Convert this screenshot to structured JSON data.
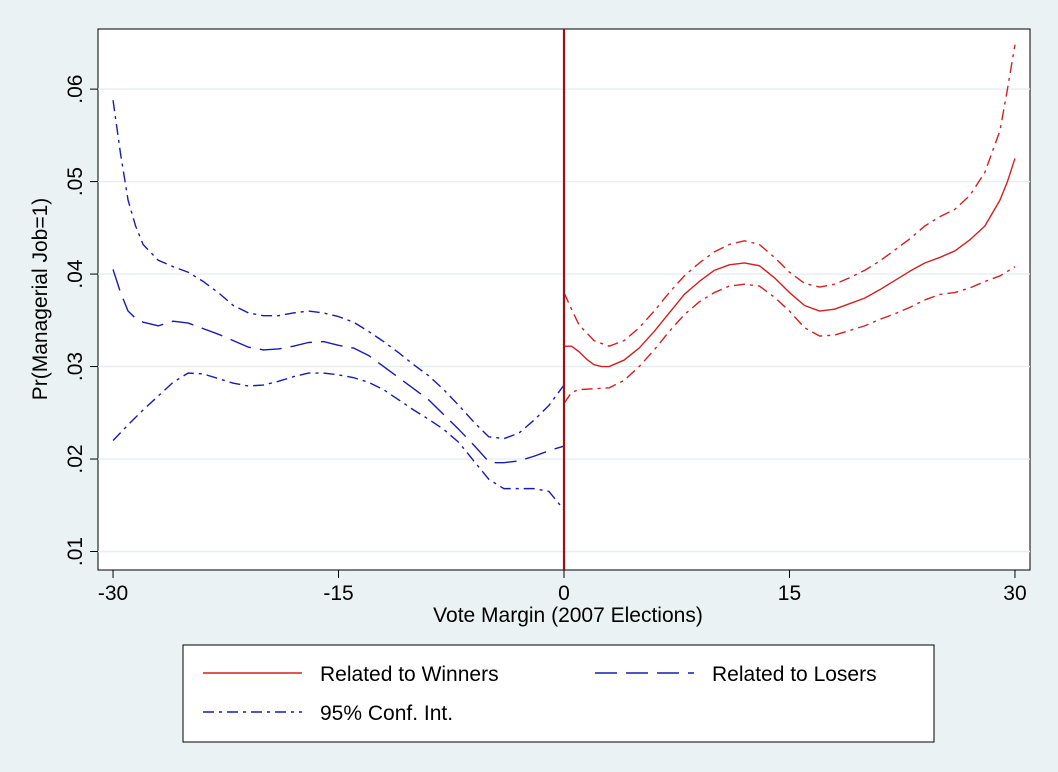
{
  "chart_data": {
    "type": "line",
    "xlabel": "Vote Margin (2007 Elections)",
    "ylabel": "Pr(Managerial Job=1)",
    "xlim": [
      -31,
      31
    ],
    "ylim": [
      0.008,
      0.0665
    ],
    "x_ticks": [
      -30,
      -15,
      0,
      15,
      30
    ],
    "x_tick_labels": [
      "-30",
      "-15",
      "0",
      "15",
      "30"
    ],
    "y_ticks": [
      0.01,
      0.02,
      0.03,
      0.04,
      0.05,
      0.06
    ],
    "y_tick_labels": [
      ".01",
      ".02",
      ".03",
      ".04",
      ".05",
      ".06"
    ],
    "grid": true,
    "cutoff_line": {
      "x": 0,
      "color": "#a01010"
    },
    "legend": {
      "placement": "bottom",
      "entries": [
        {
          "label": "Related to Winners",
          "style": "solid",
          "color": "#d42020"
        },
        {
          "label": "Related to Losers",
          "style": "dashed",
          "color": "#1a1ab0"
        },
        {
          "label": "95% Conf. Int.",
          "style": "dashdot",
          "color": "#1a1ab0"
        }
      ]
    },
    "series": [
      {
        "name": "Related to Losers",
        "role": "estimate",
        "color": "#1a1ab0",
        "style": "dashed",
        "x": [
          -30,
          -29.5,
          -29,
          -28.5,
          -28,
          -27,
          -26,
          -25,
          -24,
          -23,
          -22,
          -21,
          -20,
          -19,
          -18,
          -17,
          -16,
          -15,
          -14,
          -13,
          -12,
          -11,
          -10,
          -9,
          -8,
          -7,
          -6,
          -5,
          -4.5,
          -4,
          -3,
          -2,
          -1,
          0
        ],
        "y": [
          0.0405,
          0.038,
          0.036,
          0.0352,
          0.0348,
          0.0344,
          0.0349,
          0.0347,
          0.0341,
          0.0335,
          0.0328,
          0.0321,
          0.0318,
          0.0319,
          0.0322,
          0.0326,
          0.0327,
          0.0323,
          0.032,
          0.0312,
          0.03,
          0.0288,
          0.0276,
          0.0264,
          0.0248,
          0.0232,
          0.0215,
          0.0197,
          0.0196,
          0.0196,
          0.0198,
          0.0203,
          0.0209,
          0.0214
        ]
      },
      {
        "name": "95% Conf. Int. (Losers, upper)",
        "role": "ci",
        "color": "#1a1ab0",
        "style": "dashdot",
        "x": [
          -30,
          -29.5,
          -29,
          -28.5,
          -28,
          -27,
          -26,
          -25,
          -24,
          -23,
          -22,
          -21,
          -20,
          -19,
          -18,
          -17,
          -16,
          -15,
          -14,
          -13,
          -12,
          -11,
          -10,
          -9,
          -8,
          -7,
          -6,
          -5,
          -4,
          -3,
          -2,
          -1,
          0
        ],
        "y": [
          0.0588,
          0.053,
          0.048,
          0.0452,
          0.0432,
          0.0415,
          0.0408,
          0.0402,
          0.0392,
          0.038,
          0.0366,
          0.0358,
          0.0355,
          0.0355,
          0.0358,
          0.036,
          0.0358,
          0.0354,
          0.0348,
          0.0338,
          0.0327,
          0.0315,
          0.0302,
          0.029,
          0.0275,
          0.0258,
          0.024,
          0.0224,
          0.0222,
          0.0228,
          0.0242,
          0.0258,
          0.028
        ]
      },
      {
        "name": "95% Conf. Int. (Losers, lower)",
        "role": "ci",
        "color": "#1a1ab0",
        "style": "dashdot",
        "x": [
          -30,
          -29,
          -28,
          -27,
          -26,
          -25,
          -24,
          -23,
          -22,
          -21,
          -20,
          -19,
          -18,
          -17,
          -16,
          -15,
          -14,
          -13,
          -12,
          -11,
          -10,
          -9,
          -8,
          -7,
          -6,
          -5,
          -4,
          -3,
          -2,
          -1,
          -0.5,
          0
        ],
        "y": [
          0.022,
          0.0237,
          0.0253,
          0.0268,
          0.0283,
          0.0293,
          0.0292,
          0.0287,
          0.0282,
          0.0279,
          0.028,
          0.0284,
          0.0289,
          0.0293,
          0.0293,
          0.0291,
          0.0288,
          0.0283,
          0.0275,
          0.0264,
          0.0253,
          0.0243,
          0.0232,
          0.0218,
          0.0198,
          0.0178,
          0.0168,
          0.0168,
          0.0168,
          0.0165,
          0.0155,
          0.0145
        ]
      },
      {
        "name": "Related to Winners",
        "role": "estimate",
        "color": "#d42020",
        "style": "solid",
        "x": [
          0,
          0.5,
          1,
          1.5,
          2,
          2.5,
          3,
          4,
          5,
          6,
          7,
          8,
          9,
          10,
          11,
          12,
          13,
          14,
          15,
          16,
          17,
          18,
          19,
          20,
          21,
          22,
          23,
          24,
          25,
          26,
          27,
          28,
          29,
          29.5,
          30
        ],
        "y": [
          0.0322,
          0.0322,
          0.0316,
          0.0308,
          0.0302,
          0.03,
          0.03,
          0.0307,
          0.032,
          0.0338,
          0.0358,
          0.0378,
          0.0392,
          0.0404,
          0.041,
          0.0412,
          0.0409,
          0.0396,
          0.038,
          0.0366,
          0.036,
          0.0362,
          0.0368,
          0.0374,
          0.0383,
          0.0393,
          0.0403,
          0.0412,
          0.0418,
          0.0425,
          0.0437,
          0.0452,
          0.048,
          0.05,
          0.0525
        ]
      },
      {
        "name": "95% Conf. Int. (Winners, upper)",
        "role": "ci",
        "color": "#d42020",
        "style": "dashdot",
        "x": [
          0,
          0.5,
          1,
          2,
          3,
          4,
          5,
          6,
          7,
          8,
          9,
          10,
          11,
          12,
          13,
          14,
          15,
          16,
          17,
          18,
          19,
          20,
          21,
          22,
          23,
          24,
          25,
          26,
          27,
          28,
          29,
          29.5,
          30
        ],
        "y": [
          0.038,
          0.0362,
          0.0345,
          0.0328,
          0.0322,
          0.0328,
          0.0342,
          0.036,
          0.038,
          0.0398,
          0.0412,
          0.0424,
          0.0432,
          0.0436,
          0.0432,
          0.0418,
          0.0402,
          0.039,
          0.0386,
          0.0389,
          0.0396,
          0.0404,
          0.0414,
          0.0426,
          0.0438,
          0.0452,
          0.0462,
          0.047,
          0.0485,
          0.051,
          0.0555,
          0.06,
          0.0648
        ]
      },
      {
        "name": "95% Conf. Int. (Winners, lower)",
        "role": "ci",
        "color": "#d42020",
        "style": "dashdot",
        "x": [
          0,
          0.5,
          1,
          2,
          3,
          4,
          5,
          6,
          7,
          8,
          9,
          10,
          11,
          12,
          13,
          14,
          15,
          16,
          17,
          18,
          19,
          20,
          21,
          22,
          23,
          24,
          25,
          26,
          27,
          28,
          29,
          30
        ],
        "y": [
          0.026,
          0.0272,
          0.0275,
          0.0276,
          0.0277,
          0.0285,
          0.03,
          0.0318,
          0.0338,
          0.0356,
          0.037,
          0.038,
          0.0387,
          0.0389,
          0.0387,
          0.0375,
          0.036,
          0.0342,
          0.0333,
          0.0334,
          0.0339,
          0.0344,
          0.0351,
          0.0357,
          0.0364,
          0.0372,
          0.0378,
          0.038,
          0.0385,
          0.0392,
          0.0398,
          0.0408
        ]
      }
    ]
  }
}
